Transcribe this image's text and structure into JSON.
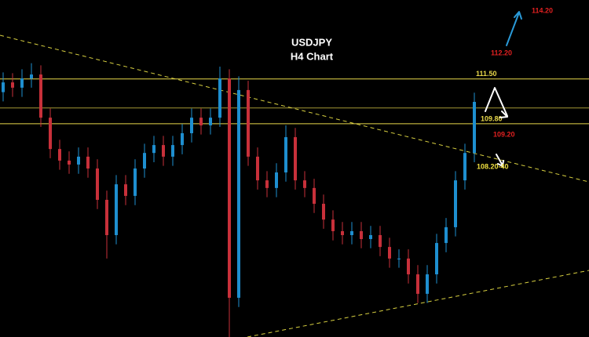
{
  "chart_data": {
    "type": "candlestick",
    "title": "USDJPY",
    "subtitle": "H4 Chart",
    "ylim": [
      101.7,
      114.5
    ],
    "up_color": "#1e8fd0",
    "down_color": "#c8303a",
    "level_color": "#e8d84a",
    "trend_color": "#d8d040",
    "candles": [
      [
        111.0,
        111.75,
        110.65,
        111.37
      ],
      [
        111.37,
        111.72,
        110.82,
        111.17
      ],
      [
        111.17,
        111.87,
        110.82,
        111.52
      ],
      [
        111.52,
        112.1,
        111.17,
        111.67
      ],
      [
        111.67,
        112.02,
        109.68,
        110.03
      ],
      [
        110.03,
        110.38,
        108.49,
        108.84
      ],
      [
        108.84,
        109.19,
        108.05,
        108.4
      ],
      [
        108.4,
        108.75,
        107.9,
        108.25
      ],
      [
        108.25,
        108.9,
        107.9,
        108.55
      ],
      [
        108.55,
        108.9,
        107.75,
        108.1
      ],
      [
        108.1,
        108.45,
        106.56,
        106.91
      ],
      [
        106.91,
        107.26,
        104.68,
        105.57
      ],
      [
        105.57,
        107.85,
        105.22,
        107.5
      ],
      [
        107.5,
        107.85,
        106.71,
        107.06
      ],
      [
        107.06,
        108.45,
        106.71,
        108.1
      ],
      [
        108.1,
        109.04,
        107.75,
        108.69
      ],
      [
        108.69,
        109.34,
        108.34,
        108.99
      ],
      [
        108.99,
        109.34,
        108.2,
        108.55
      ],
      [
        108.55,
        109.34,
        108.2,
        108.99
      ],
      [
        108.99,
        109.79,
        108.64,
        109.44
      ],
      [
        109.44,
        110.38,
        109.09,
        110.03
      ],
      [
        110.03,
        110.38,
        109.39,
        109.74
      ],
      [
        109.74,
        110.38,
        109.39,
        110.03
      ],
      [
        110.03,
        111.97,
        109.68,
        111.52
      ],
      [
        111.52,
        111.87,
        101.7,
        103.19
      ],
      [
        103.19,
        111.6,
        102.84,
        111.08
      ],
      [
        111.08,
        111.43,
        108.2,
        108.55
      ],
      [
        108.55,
        108.9,
        107.3,
        107.65
      ],
      [
        107.65,
        108.0,
        107.01,
        107.36
      ],
      [
        107.36,
        108.3,
        107.01,
        107.95
      ],
      [
        107.95,
        109.74,
        107.6,
        109.29
      ],
      [
        109.29,
        109.64,
        107.3,
        107.65
      ],
      [
        107.65,
        108.0,
        107.01,
        107.36
      ],
      [
        107.36,
        107.71,
        106.41,
        106.76
      ],
      [
        106.76,
        107.11,
        105.81,
        106.16
      ],
      [
        106.16,
        106.51,
        105.37,
        105.72
      ],
      [
        105.72,
        106.07,
        105.22,
        105.57
      ],
      [
        105.57,
        106.07,
        105.22,
        105.72
      ],
      [
        105.72,
        106.07,
        105.07,
        105.42
      ],
      [
        105.42,
        105.92,
        105.07,
        105.57
      ],
      [
        105.57,
        105.92,
        104.77,
        105.12
      ],
      [
        105.12,
        105.47,
        104.33,
        104.68
      ],
      [
        104.68,
        105.03,
        104.33,
        104.68
      ],
      [
        104.68,
        105.03,
        103.73,
        104.08
      ],
      [
        104.08,
        104.43,
        102.99,
        103.34
      ],
      [
        103.34,
        104.43,
        102.99,
        104.08
      ],
      [
        104.08,
        105.62,
        103.73,
        105.27
      ],
      [
        105.27,
        106.22,
        104.92,
        105.87
      ],
      [
        105.87,
        108.0,
        105.52,
        107.65
      ],
      [
        107.65,
        109.04,
        107.3,
        108.69
      ],
      [
        108.69,
        110.98,
        108.34,
        110.63
      ]
    ],
    "levels": [
      {
        "value": 111.5,
        "label": "111.50"
      },
      110.4,
      {
        "value": 109.8,
        "label": "109.80"
      }
    ],
    "trendlines": [
      [
        [
          -0.33,
          113.16
        ],
        [
          62.17,
          107.59
        ]
      ],
      [
        [
          25.92,
          101.7
        ],
        [
          62.17,
          104.23
        ]
      ]
    ],
    "annotations": [
      {
        "text": "112.20",
        "color": "#e02020"
      },
      {
        "text": "114.20",
        "color": "#e02020"
      },
      {
        "text": "109.20",
        "color": "#e02020"
      },
      {
        "text": "108.20-40",
        "color": "#f0e040"
      }
    ]
  }
}
